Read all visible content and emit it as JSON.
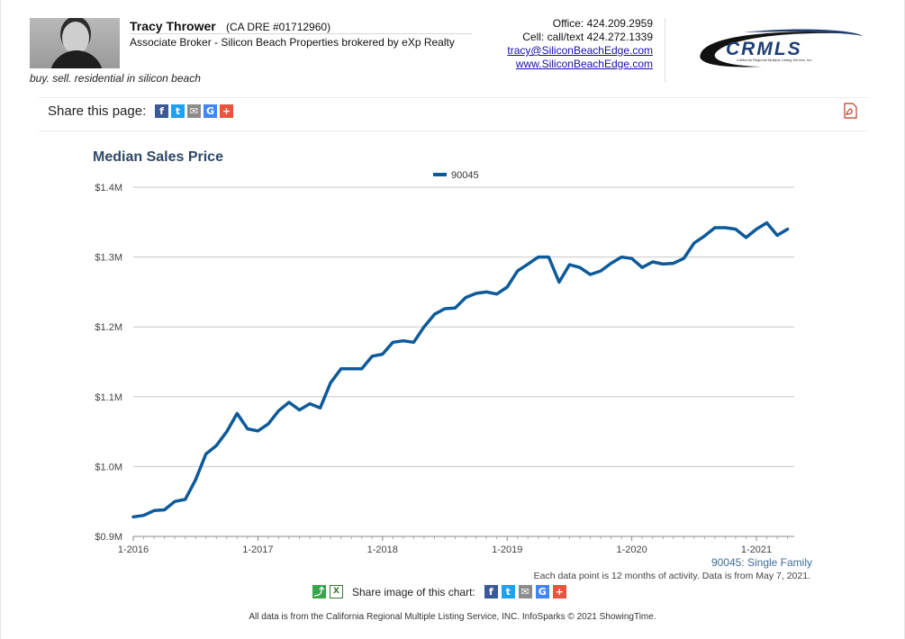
{
  "agent": {
    "name": "Tracy Thrower",
    "dre": "(CA DRE #01712960)",
    "title": "Associate Broker - Silicon Beach Properties brokered by eXp Realty",
    "tagline": "buy. sell. residential in silicon beach"
  },
  "contact": {
    "office": "Office: 424.209.2959",
    "cell": "Cell: call/text 424.272.1339",
    "email": "tracy@SiliconBeachEdge.com",
    "website": "www.SiliconBeachEdge.com"
  },
  "logo": {
    "text": "CRMLS",
    "subtext": "California Regional Multiple Listing Service, Inc."
  },
  "share": {
    "label": "Share this page:"
  },
  "colors": {
    "series": "#0d5a9a",
    "title": "#2e4867",
    "grid": "#c8c8c8",
    "facebook": "#3b5998",
    "twitter": "#1da1f2",
    "email": "#8c8c8c",
    "google": "#4285f4",
    "plus": "#e8553e",
    "pdf": "#c0392b"
  },
  "chart_data": {
    "type": "line",
    "title": "Median Sales Price",
    "legend_position": "top-center",
    "grid": true,
    "ylim": [
      900000,
      1400000
    ],
    "y_ticks": [
      {
        "value": 900000,
        "label": "$0.9M"
      },
      {
        "value": 1000000,
        "label": "$1.0M"
      },
      {
        "value": 1100000,
        "label": "$1.1M"
      },
      {
        "value": 1200000,
        "label": "$1.2M"
      },
      {
        "value": 1300000,
        "label": "$1.3M"
      },
      {
        "value": 1400000,
        "label": "$1.4M"
      }
    ],
    "x_ticks": [
      "1-2016",
      "1-2017",
      "1-2018",
      "1-2019",
      "1-2020",
      "1-2021"
    ],
    "series": [
      {
        "name": "90045",
        "x": [
          "1-2016",
          "2-2016",
          "3-2016",
          "4-2016",
          "5-2016",
          "6-2016",
          "7-2016",
          "8-2016",
          "9-2016",
          "10-2016",
          "11-2016",
          "12-2016",
          "1-2017",
          "2-2017",
          "3-2017",
          "4-2017",
          "5-2017",
          "6-2017",
          "7-2017",
          "8-2017",
          "9-2017",
          "10-2017",
          "11-2017",
          "12-2017",
          "1-2018",
          "2-2018",
          "3-2018",
          "4-2018",
          "5-2018",
          "6-2018",
          "7-2018",
          "8-2018",
          "9-2018",
          "10-2018",
          "11-2018",
          "12-2018",
          "1-2019",
          "2-2019",
          "3-2019",
          "4-2019",
          "5-2019",
          "6-2019",
          "7-2019",
          "8-2019",
          "9-2019",
          "10-2019",
          "11-2019",
          "12-2019",
          "1-2020",
          "2-2020",
          "3-2020",
          "4-2020",
          "5-2020",
          "6-2020",
          "7-2020",
          "8-2020",
          "9-2020",
          "10-2020",
          "11-2020",
          "12-2020",
          "1-2021",
          "2-2021",
          "3-2021",
          "4-2021"
        ],
        "values": [
          928000,
          930000,
          937000,
          938000,
          950000,
          953000,
          981000,
          1018000,
          1030000,
          1050000,
          1076000,
          1054000,
          1051000,
          1061000,
          1080000,
          1092000,
          1081000,
          1090000,
          1084000,
          1120000,
          1140000,
          1140000,
          1140000,
          1158000,
          1161000,
          1178000,
          1180000,
          1178000,
          1200000,
          1218000,
          1226000,
          1227000,
          1242000,
          1248000,
          1250000,
          1247000,
          1257000,
          1280000,
          1290000,
          1300000,
          1300000,
          1264000,
          1289000,
          1285000,
          1275000,
          1280000,
          1291000,
          1300000,
          1298000,
          1285000,
          1293000,
          1290000,
          1291000,
          1298000,
          1320000,
          1330000,
          1342000,
          1342000,
          1340000,
          1328000,
          1340000,
          1349000,
          1331000,
          1340000
        ]
      }
    ],
    "series_label": "90045: Single Family",
    "note": "Each data point is 12 months of activity. Data is from May 7, 2021."
  },
  "bottom_share": {
    "label": "Share image of this chart:"
  },
  "footer": "All data is from the California Regional Multiple Listing Service, INC. InfoSparks © 2021 ShowingTime."
}
